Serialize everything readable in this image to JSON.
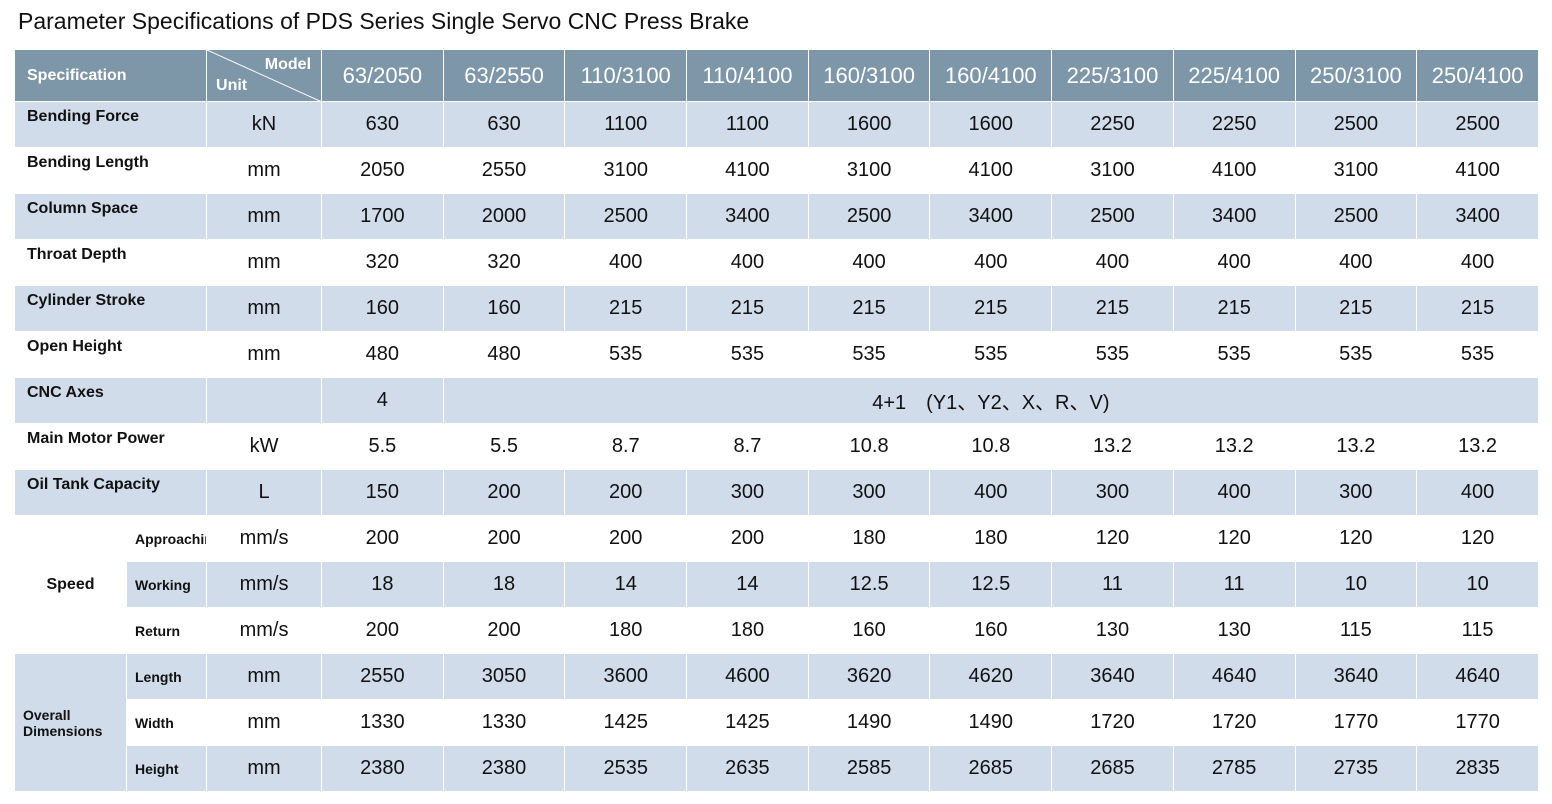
{
  "title": "Parameter Specifications of PDS Series Single Servo CNC Press Brake",
  "header": {
    "specification": "Specification",
    "model": "Model",
    "unit": "Unit",
    "models": [
      "63/2050",
      "63/2550",
      "110/3100",
      "110/4100",
      "160/3100",
      "160/4100",
      "225/3100",
      "225/4100",
      "250/3100",
      "250/4100"
    ]
  },
  "rows": [
    {
      "label": "Bending Force",
      "unit": "kN",
      "values": [
        "630",
        "630",
        "1100",
        "1100",
        "1600",
        "1600",
        "2250",
        "2250",
        "2500",
        "2500"
      ]
    },
    {
      "label": "Bending Length",
      "unit": "mm",
      "values": [
        "2050",
        "2550",
        "3100",
        "4100",
        "3100",
        "4100",
        "3100",
        "4100",
        "3100",
        "4100"
      ]
    },
    {
      "label": "Column Space",
      "unit": "mm",
      "values": [
        "1700",
        "2000",
        "2500",
        "3400",
        "2500",
        "3400",
        "2500",
        "3400",
        "2500",
        "3400"
      ]
    },
    {
      "label": "Throat Depth",
      "unit": "mm",
      "values": [
        "320",
        "320",
        "400",
        "400",
        "400",
        "400",
        "400",
        "400",
        "400",
        "400"
      ]
    },
    {
      "label": "Cylinder Stroke",
      "unit": "mm",
      "values": [
        "160",
        "160",
        "215",
        "215",
        "215",
        "215",
        "215",
        "215",
        "215",
        "215"
      ]
    },
    {
      "label": "Open Height",
      "unit": "mm",
      "values": [
        "480",
        "480",
        "535",
        "535",
        "535",
        "535",
        "535",
        "535",
        "535",
        "535"
      ]
    },
    {
      "label": "CNC Axes",
      "values": [
        "4",
        "4+1　(Y1、Y2、X、R、V)"
      ]
    },
    {
      "label": "Main Motor Power",
      "unit": "kW",
      "values": [
        "5.5",
        "5.5",
        "8.7",
        "8.7",
        "10.8",
        "10.8",
        "13.2",
        "13.2",
        "13.2",
        "13.2"
      ]
    },
    {
      "label": "Oil Tank Capacity",
      "unit": "L",
      "values": [
        "150",
        "200",
        "200",
        "300",
        "300",
        "400",
        "300",
        "400",
        "300",
        "400"
      ]
    }
  ],
  "groups": [
    {
      "label": "Speed",
      "rows": [
        {
          "label": "Approaching",
          "unit": "mm/s",
          "values": [
            "200",
            "200",
            "200",
            "200",
            "180",
            "180",
            "120",
            "120",
            "120",
            "120"
          ]
        },
        {
          "label": "Working",
          "unit": "mm/s",
          "values": [
            "18",
            "18",
            "14",
            "14",
            "12.5",
            "12.5",
            "11",
            "11",
            "10",
            "10"
          ]
        },
        {
          "label": "Return",
          "unit": "mm/s",
          "values": [
            "200",
            "200",
            "180",
            "180",
            "160",
            "160",
            "130",
            "130",
            "115",
            "115"
          ]
        }
      ]
    },
    {
      "label": "Overall Dimensions",
      "rows": [
        {
          "label": "Length",
          "unit": "mm",
          "values": [
            "2550",
            "3050",
            "3600",
            "4600",
            "3620",
            "4620",
            "3640",
            "4640",
            "3640",
            "4640"
          ]
        },
        {
          "label": "Width",
          "unit": "mm",
          "values": [
            "1330",
            "1330",
            "1425",
            "1425",
            "1490",
            "1490",
            "1720",
            "1720",
            "1770",
            "1770"
          ]
        },
        {
          "label": "Height",
          "unit": "mm",
          "values": [
            "2380",
            "2380",
            "2535",
            "2635",
            "2585",
            "2685",
            "2685",
            "2785",
            "2735",
            "2835"
          ]
        }
      ]
    }
  ]
}
